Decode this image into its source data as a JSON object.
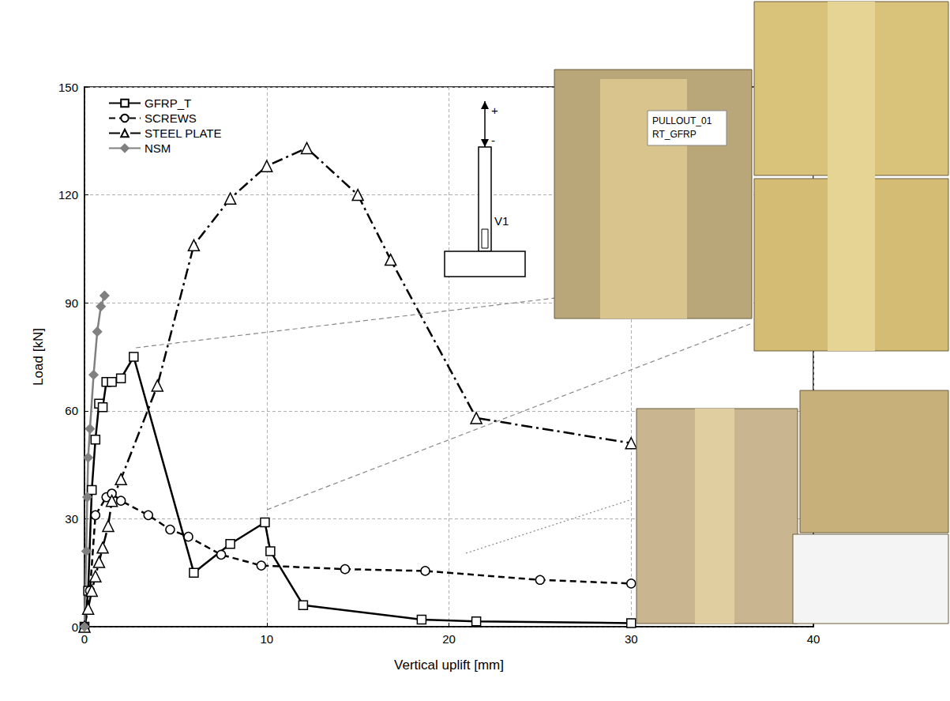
{
  "chart_data": {
    "type": "line",
    "x_label": "Vertical uplift [mm]",
    "y_label": "Load [kN]",
    "xlim": [
      0,
      40
    ],
    "xticks": [
      0,
      10,
      20,
      30,
      40
    ],
    "ylim": [
      0,
      150
    ],
    "yticks": [
      0,
      30,
      60,
      90,
      120,
      150
    ],
    "grid": true,
    "legend": "upper left",
    "annotations": [
      "+",
      "-",
      "V1",
      "PULLOUT_01",
      "RT_GFRP"
    ],
    "series": [
      {
        "name": "GFRP_T",
        "color": "#000000",
        "marker": "square",
        "line_style": "solid",
        "x": [
          0,
          0.2,
          0.4,
          0.6,
          0.8,
          1.0,
          1.2,
          1.5,
          2.0,
          2.7,
          6.0,
          8.0,
          9.9,
          10.2,
          12.0,
          18.5,
          21.5,
          30.0
        ],
        "values": [
          0,
          10,
          38,
          52,
          62,
          61,
          68,
          68,
          69,
          75,
          15,
          23,
          29,
          21,
          6,
          2,
          1.5,
          1
        ]
      },
      {
        "name": "SCREWS",
        "color": "#000000",
        "marker": "circle",
        "line_style": "dashed",
        "x": [
          0,
          0.3,
          0.6,
          1.2,
          1.5,
          2.0,
          3.5,
          4.7,
          5.7,
          7.5,
          9.7,
          14.3,
          18.7,
          25.0,
          30.0
        ],
        "values": [
          0,
          10,
          31,
          36,
          37,
          35,
          31,
          27,
          25,
          20,
          17,
          16,
          15.5,
          13,
          12
        ]
      },
      {
        "name": "STEEL PLATE",
        "color": "#000000",
        "marker": "triangle",
        "line_style": "dashdot",
        "x": [
          0,
          0.2,
          0.4,
          0.6,
          0.8,
          1.0,
          1.3,
          1.5,
          2.0,
          4.0,
          6.0,
          8.0,
          10.0,
          12.2,
          15.0,
          16.8,
          21.5,
          30.0
        ],
        "values": [
          0,
          5,
          10,
          14,
          18,
          22,
          28,
          35,
          41,
          67,
          106,
          119,
          128,
          133,
          120,
          102,
          58,
          51
        ]
      },
      {
        "name": "NSM",
        "color": "#808080",
        "marker": "diamond",
        "line_style": "solid",
        "x": [
          0,
          0.1,
          0.15,
          0.2,
          0.3,
          0.5,
          0.7,
          0.9,
          1.1
        ],
        "values": [
          0,
          21,
          36,
          47,
          55,
          70,
          82,
          89,
          92
        ]
      }
    ]
  }
}
